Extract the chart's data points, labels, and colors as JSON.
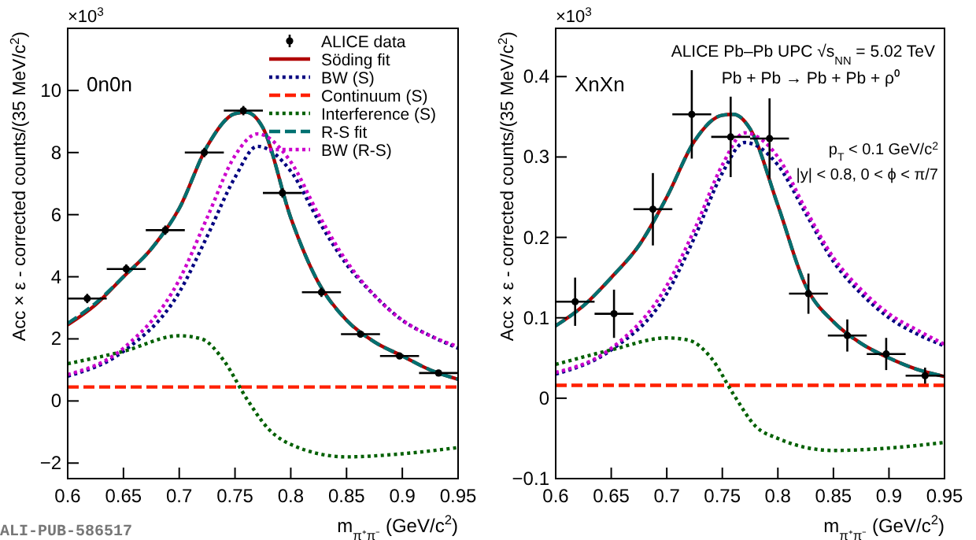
{
  "chart_data": [
    {
      "type": "line",
      "xlabel": "m$_{π⁺π⁻}$ (GeV/c$^{2}$)",
      "ylabel": "Acc × ε - corrected counts/(35 MeV/c$^{2}$)",
      "xlim": [
        0.6,
        0.95
      ],
      "xticks": [
        0.6,
        0.65,
        0.7,
        0.75,
        0.8,
        0.85,
        0.9,
        0.95
      ],
      "ylim": [
        -2.5,
        12
      ],
      "yticks": [
        -2,
        0,
        2,
        4,
        6,
        8,
        10
      ],
      "legend": "top right",
      "grid": false,
      "annotations": [
        "×10$^{3}$",
        "0n0n",
        "ALI-PUB-586517"
      ],
      "series": [
        {
          "name": "ALICE data",
          "type": "scatter",
          "marker": "circle",
          "color": "#000000",
          "x": [
            0.6175,
            0.6525,
            0.6875,
            0.7225,
            0.7575,
            0.7925,
            0.8275,
            0.8625,
            0.8975,
            0.9325
          ],
          "values": [
            3.3,
            4.25,
            5.5,
            8.0,
            9.35,
            6.7,
            3.5,
            2.15,
            1.45,
            0.9
          ],
          "errors": [
            0.15,
            0.15,
            0.15,
            0.15,
            0.15,
            0.15,
            0.15,
            0.1,
            0.1,
            0.1
          ],
          "xerrors": [
            0.0175,
            0.0175,
            0.0175,
            0.0175,
            0.0175,
            0.0175,
            0.0175,
            0.0175,
            0.0175,
            0.0175
          ]
        },
        {
          "name": "Söding fit",
          "color": "#b00000",
          "line_style": "solid",
          "x": [
            0.6,
            0.625,
            0.65,
            0.675,
            0.7,
            0.725,
            0.75,
            0.76,
            0.775,
            0.8,
            0.825,
            0.85,
            0.875,
            0.9,
            0.925,
            0.95
          ],
          "values": [
            2.45,
            3.1,
            4.0,
            4.9,
            6.2,
            8.2,
            9.25,
            9.3,
            8.8,
            5.9,
            3.8,
            2.6,
            1.9,
            1.45,
            1.0,
            0.7
          ]
        },
        {
          "name": "BW (S)",
          "color": "#000080",
          "line_style": "dotted",
          "x": [
            0.6,
            0.65,
            0.7,
            0.725,
            0.75,
            0.77,
            0.8,
            0.825,
            0.85,
            0.875,
            0.9,
            0.925,
            0.95
          ],
          "values": [
            0.8,
            1.6,
            3.5,
            5.3,
            7.2,
            8.2,
            7.4,
            5.8,
            4.4,
            3.4,
            2.6,
            2.1,
            1.7
          ]
        },
        {
          "name": "Continuum (S)",
          "color": "#ff2000",
          "line_style": "dashed",
          "x": [
            0.6,
            0.95
          ],
          "values": [
            0.45,
            0.45
          ]
        },
        {
          "name": "Interference (S)",
          "color": "#006000",
          "line_style": "dotted",
          "x": [
            0.6,
            0.65,
            0.7,
            0.72,
            0.74,
            0.76,
            0.78,
            0.8,
            0.85,
            0.9,
            0.95
          ],
          "values": [
            1.2,
            1.6,
            2.1,
            2.0,
            1.3,
            0.1,
            -0.9,
            -1.4,
            -1.8,
            -1.7,
            -1.5
          ]
        },
        {
          "name": "R-S fit",
          "color": "#007070",
          "line_style": "dashed",
          "x": [
            0.6,
            0.625,
            0.65,
            0.675,
            0.7,
            0.725,
            0.75,
            0.76,
            0.775,
            0.8,
            0.825,
            0.85,
            0.875,
            0.9,
            0.925,
            0.95
          ],
          "values": [
            2.5,
            3.15,
            4.0,
            4.9,
            6.2,
            8.2,
            9.25,
            9.3,
            8.8,
            5.9,
            3.8,
            2.6,
            1.9,
            1.45,
            1.0,
            0.7
          ]
        },
        {
          "name": "BW (R-S)",
          "color": "#cc00cc",
          "line_style": "dotted",
          "x": [
            0.6,
            0.65,
            0.7,
            0.725,
            0.75,
            0.77,
            0.8,
            0.825,
            0.85,
            0.875,
            0.9,
            0.925,
            0.95
          ],
          "values": [
            0.85,
            1.7,
            3.9,
            5.9,
            7.9,
            8.6,
            7.7,
            6.0,
            4.5,
            3.4,
            2.6,
            2.1,
            1.75
          ]
        }
      ]
    },
    {
      "type": "line",
      "xlabel": "m$_{π⁺π⁻}$ (GeV/c$^{2}$)",
      "ylabel": "Acc × ε - corrected counts/(35 MeV/c$^{2}$)",
      "xlim": [
        0.6,
        0.95
      ],
      "xticks": [
        0.6,
        0.65,
        0.7,
        0.75,
        0.8,
        0.85,
        0.9,
        0.95
      ],
      "ylim": [
        -0.1,
        0.46
      ],
      "yticks": [
        -0.1,
        0,
        0.1,
        0.2,
        0.3,
        0.4
      ],
      "grid": false,
      "annotations": [
        "×10$^{3}$",
        "XnXn",
        "ALICE Pb–Pb UPC √s$_{NN}$ = 5.02 TeV",
        "Pb + Pb → Pb + Pb + ρ⁰",
        "p$_{T}$ < 0.1 GeV/c$^{2}$",
        "|y| < 0.8, 0 < ϕ < π/7"
      ],
      "series": [
        {
          "type": "scatter",
          "marker": "circle",
          "color": "#000000",
          "x": [
            0.6175,
            0.6525,
            0.6875,
            0.7225,
            0.7575,
            0.7925,
            0.8275,
            0.8625,
            0.8975,
            0.9325
          ],
          "values": [
            0.12,
            0.105,
            0.235,
            0.353,
            0.325,
            0.323,
            0.13,
            0.078,
            0.055,
            0.028
          ],
          "errors": [
            0.03,
            0.03,
            0.045,
            0.055,
            0.05,
            0.05,
            0.025,
            0.02,
            0.02,
            0.01
          ],
          "xerrors": [
            0.0175,
            0.0175,
            0.0175,
            0.0175,
            0.0175,
            0.0175,
            0.0175,
            0.0175,
            0.0175,
            0.0175
          ]
        },
        {
          "color": "#b00000",
          "line_style": "solid",
          "x": [
            0.6,
            0.625,
            0.65,
            0.675,
            0.7,
            0.725,
            0.75,
            0.76,
            0.775,
            0.8,
            0.825,
            0.85,
            0.875,
            0.9,
            0.925,
            0.95
          ],
          "values": [
            0.09,
            0.115,
            0.15,
            0.19,
            0.25,
            0.32,
            0.352,
            0.353,
            0.335,
            0.24,
            0.14,
            0.095,
            0.068,
            0.05,
            0.036,
            0.027
          ]
        },
        {
          "color": "#000080",
          "line_style": "dotted",
          "x": [
            0.6,
            0.65,
            0.7,
            0.725,
            0.75,
            0.77,
            0.8,
            0.825,
            0.85,
            0.875,
            0.9,
            0.925,
            0.95
          ],
          "values": [
            0.03,
            0.06,
            0.13,
            0.2,
            0.28,
            0.318,
            0.29,
            0.23,
            0.17,
            0.13,
            0.1,
            0.08,
            0.065
          ]
        },
        {
          "color": "#ff2000",
          "line_style": "dashed",
          "x": [
            0.6,
            0.95
          ],
          "values": [
            0.016,
            0.016
          ]
        },
        {
          "color": "#006000",
          "line_style": "dotted",
          "x": [
            0.6,
            0.65,
            0.7,
            0.72,
            0.74,
            0.76,
            0.78,
            0.8,
            0.85,
            0.9,
            0.95
          ],
          "values": [
            0.042,
            0.06,
            0.075,
            0.072,
            0.05,
            0.005,
            -0.035,
            -0.05,
            -0.065,
            -0.062,
            -0.055
          ]
        },
        {
          "color": "#007070",
          "line_style": "dashed",
          "x": [
            0.6,
            0.625,
            0.65,
            0.675,
            0.7,
            0.725,
            0.75,
            0.76,
            0.775,
            0.8,
            0.825,
            0.85,
            0.875,
            0.9,
            0.925,
            0.95
          ],
          "values": [
            0.09,
            0.115,
            0.15,
            0.19,
            0.25,
            0.32,
            0.352,
            0.353,
            0.335,
            0.24,
            0.14,
            0.095,
            0.068,
            0.05,
            0.036,
            0.027
          ]
        },
        {
          "color": "#cc00cc",
          "line_style": "dotted",
          "x": [
            0.6,
            0.65,
            0.7,
            0.725,
            0.75,
            0.77,
            0.8,
            0.825,
            0.85,
            0.875,
            0.9,
            0.925,
            0.95
          ],
          "values": [
            0.032,
            0.062,
            0.14,
            0.21,
            0.29,
            0.33,
            0.3,
            0.235,
            0.175,
            0.135,
            0.105,
            0.085,
            0.067
          ]
        }
      ]
    }
  ]
}
